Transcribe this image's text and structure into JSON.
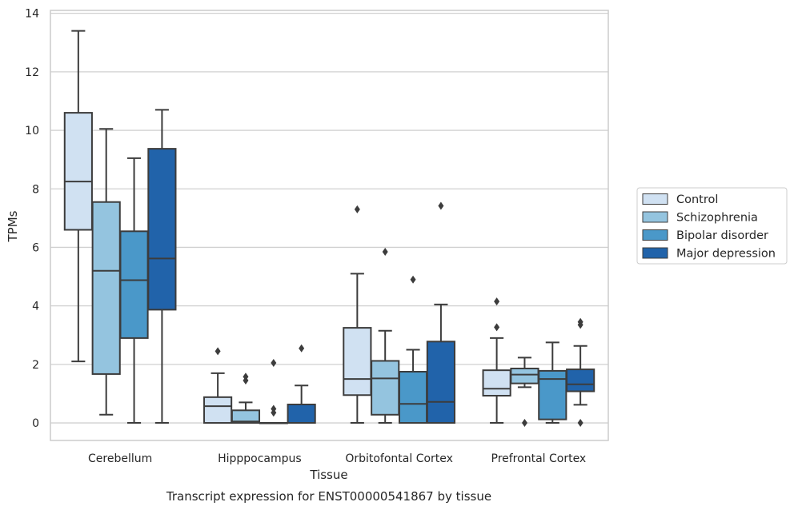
{
  "chart_data": {
    "type": "box",
    "xlabel": "Tissue",
    "ylabel": "TPMs",
    "caption": "Transcript expression for ENST00000541867 by tissue",
    "ylim": [
      -0.6,
      14.1
    ],
    "yticks": [
      "0",
      "2",
      "4",
      "6",
      "8",
      "10",
      "12",
      "14"
    ],
    "grid": "horizontal",
    "legend_position": "right",
    "categories": [
      "Cerebellum",
      "Hipppocampus",
      "Orbitofontal Cortex",
      "Prefrontal Cortex"
    ],
    "series": [
      {
        "name": "Control",
        "color": "#d0e1f2",
        "boxes": [
          {
            "min": 2.1,
            "q1": 6.6,
            "median": 8.25,
            "q3": 10.6,
            "max": 13.4,
            "outliers": []
          },
          {
            "min": 0.0,
            "q1": 0.0,
            "median": 0.57,
            "q3": 0.88,
            "max": 1.7,
            "outliers": [
              2.45
            ]
          },
          {
            "min": 0.0,
            "q1": 0.95,
            "median": 1.5,
            "q3": 3.25,
            "max": 5.1,
            "outliers": [
              7.3
            ]
          },
          {
            "min": 0.0,
            "q1": 0.93,
            "median": 1.17,
            "q3": 1.8,
            "max": 2.9,
            "outliers": [
              3.27,
              4.15
            ]
          }
        ]
      },
      {
        "name": "Schizophrenia",
        "color": "#94c4df",
        "boxes": [
          {
            "min": 0.28,
            "q1": 1.67,
            "median": 5.2,
            "q3": 7.55,
            "max": 10.05,
            "outliers": []
          },
          {
            "min": 0.0,
            "q1": 0.0,
            "median": 0.05,
            "q3": 0.43,
            "max": 0.7,
            "outliers": [
              1.45,
              1.58
            ]
          },
          {
            "min": 0.0,
            "q1": 0.28,
            "median": 1.52,
            "q3": 2.12,
            "max": 3.15,
            "outliers": [
              5.85
            ]
          },
          {
            "min": 1.22,
            "q1": 1.35,
            "median": 1.65,
            "q3": 1.86,
            "max": 2.23,
            "outliers": [
              0.0
            ]
          }
        ]
      },
      {
        "name": "Bipolar disorder",
        "color": "#4a98c9",
        "boxes": [
          {
            "min": 0.0,
            "q1": 2.9,
            "median": 4.88,
            "q3": 6.55,
            "max": 9.05,
            "outliers": []
          },
          {
            "min": 0.0,
            "q1": 0.0,
            "median": 0.0,
            "q3": 0.0,
            "max": 0.0,
            "outliers": [
              0.35,
              0.48,
              2.05
            ]
          },
          {
            "min": 0.0,
            "q1": 0.0,
            "median": 0.65,
            "q3": 1.75,
            "max": 2.5,
            "outliers": [
              4.9
            ]
          },
          {
            "min": 0.0,
            "q1": 0.12,
            "median": 1.5,
            "q3": 1.78,
            "max": 2.75,
            "outliers": []
          }
        ]
      },
      {
        "name": "Major depression",
        "color": "#2163aa",
        "boxes": [
          {
            "min": 0.0,
            "q1": 3.87,
            "median": 5.62,
            "q3": 9.37,
            "max": 10.7,
            "outliers": []
          },
          {
            "min": 0.0,
            "q1": 0.0,
            "median": 0.0,
            "q3": 0.63,
            "max": 1.28,
            "outliers": [
              2.55
            ]
          },
          {
            "min": 0.0,
            "q1": 0.0,
            "median": 0.72,
            "q3": 2.78,
            "max": 4.05,
            "outliers": [
              7.42
            ]
          },
          {
            "min": 0.62,
            "q1": 1.08,
            "median": 1.32,
            "q3": 1.83,
            "max": 2.63,
            "outliers": [
              0.0,
              3.35,
              3.45
            ]
          }
        ]
      }
    ]
  }
}
